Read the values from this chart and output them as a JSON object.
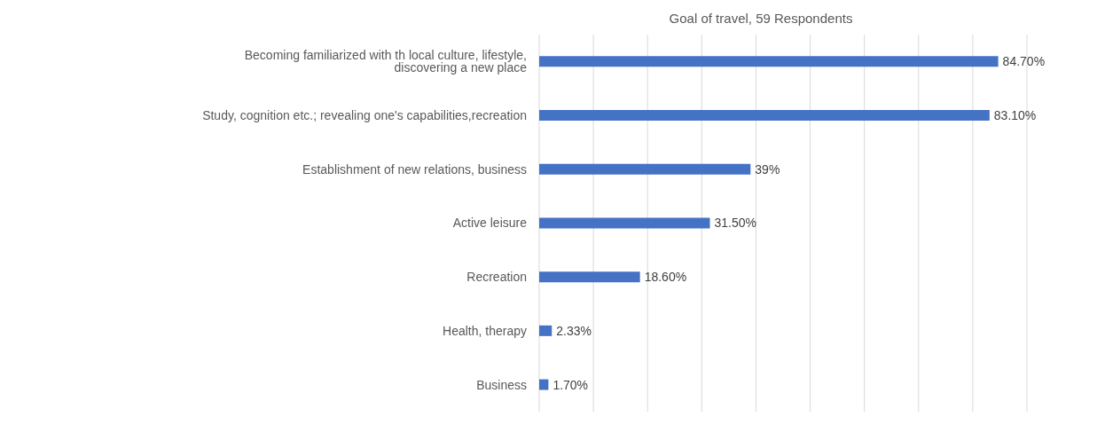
{
  "chart_data": {
    "type": "bar",
    "orientation": "horizontal",
    "title": "Goal of travel, 59 Respondents",
    "categories": [
      "Becoming familiarized with th local culture, lifestyle, discovering a new place",
      "Study, cognition etc.; revealing one's capabilities,recreation",
      "Establishment of new relations, business",
      "Active leisure",
      "Recreation",
      "Health, therapy",
      "Business"
    ],
    "values": [
      84.7,
      83.1,
      39,
      31.5,
      18.6,
      2.33,
      1.7
    ],
    "value_labels": [
      "84.70%",
      "83.10%",
      "39%",
      "31.50%",
      "18.60%",
      "2.33%",
      "1.70%"
    ],
    "color": "#4472c4",
    "xlim": [
      0,
      90
    ],
    "tick_labels": "y",
    "grid": "x"
  }
}
